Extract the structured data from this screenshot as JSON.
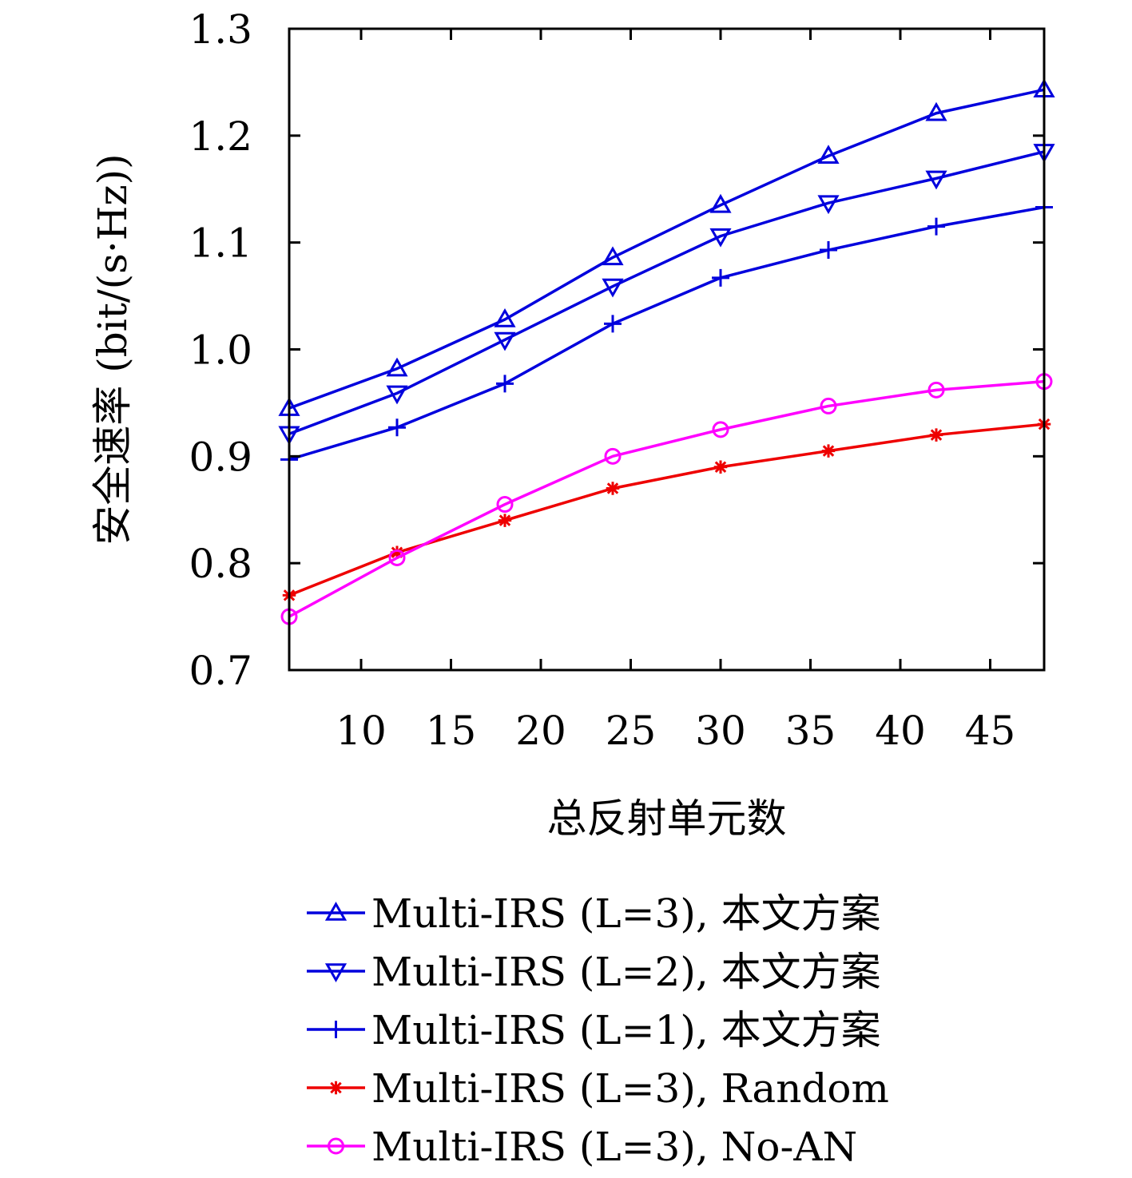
{
  "chart_data": {
    "type": "line",
    "xlabel": "总反射单元数",
    "ylabel": "安全速率 (bit/(s·Hz))",
    "xlim": [
      6,
      48
    ],
    "ylim": [
      0.7,
      1.3
    ],
    "xticks": [
      10,
      15,
      20,
      25,
      30,
      35,
      40,
      45
    ],
    "yticks": [
      0.7,
      0.8,
      0.9,
      1.0,
      1.1,
      1.2,
      1.3
    ],
    "xtick_labels": [
      "10",
      "15",
      "20",
      "25",
      "30",
      "35",
      "40",
      "45"
    ],
    "ytick_labels": [
      "0.7",
      "0.8",
      "0.9",
      "1.0",
      "1.1",
      "1.2",
      "1.3"
    ],
    "grid": false,
    "legend_position": "bottom",
    "x": [
      6,
      12,
      18,
      24,
      30,
      36,
      42,
      48
    ],
    "series": [
      {
        "name": "Multi-IRS (L=3), 本文方案",
        "color": "#0000dd",
        "marker": "triangle-up",
        "values": [
          0.945,
          0.982,
          1.028,
          1.086,
          1.135,
          1.181,
          1.221,
          1.243
        ]
      },
      {
        "name": "Multi-IRS (L=2), 本文方案",
        "color": "#0000dd",
        "marker": "triangle-down",
        "values": [
          0.921,
          0.959,
          1.009,
          1.059,
          1.106,
          1.137,
          1.16,
          1.185
        ]
      },
      {
        "name": "Multi-IRS (L=1), 本文方案",
        "color": "#0000dd",
        "marker": "plus",
        "values": [
          0.897,
          0.927,
          0.968,
          1.024,
          1.067,
          1.093,
          1.115,
          1.133
        ]
      },
      {
        "name": "Multi-IRS (L=3), Random",
        "color": "#ee0000",
        "marker": "asterisk",
        "values": [
          0.77,
          0.81,
          0.84,
          0.87,
          0.89,
          0.905,
          0.92,
          0.93
        ]
      },
      {
        "name": "Multi-IRS (L=3), No-AN",
        "color": "#ff00ff",
        "marker": "circle",
        "values": [
          0.75,
          0.805,
          0.855,
          0.9,
          0.925,
          0.947,
          0.962,
          0.97
        ]
      }
    ]
  }
}
